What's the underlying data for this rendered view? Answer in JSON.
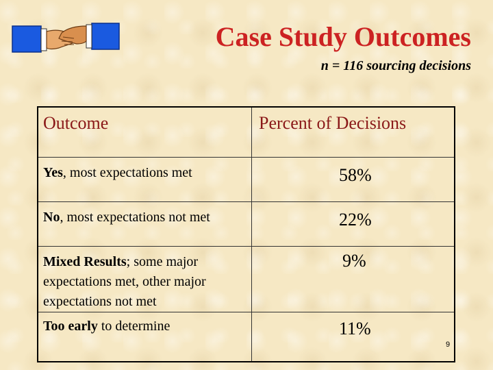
{
  "header": {
    "title": "Case Study Outcomes",
    "subtitle": "n = 116 sourcing decisions",
    "logo_icon": "handshake-icon"
  },
  "table": {
    "columns": [
      "Outcome",
      "Percent of Decisions"
    ],
    "rows": [
      {
        "bold": "Yes",
        "rest": ", most expectations met",
        "percent": "58%"
      },
      {
        "bold": "No",
        "rest": ", most expectations not met",
        "percent": "22%"
      },
      {
        "bold": "Mixed Results",
        "rest": "; some major expectations met, other major expectations not met",
        "percent": "9%"
      },
      {
        "bold": "Too early",
        "rest": " to determine",
        "percent": "11%"
      }
    ]
  },
  "footer": {
    "page_number": "9"
  },
  "colors": {
    "title": "#cc2222",
    "header_text": "#8a1818",
    "background": "#f6e8c4",
    "sleeve": "#1a5ae0"
  }
}
